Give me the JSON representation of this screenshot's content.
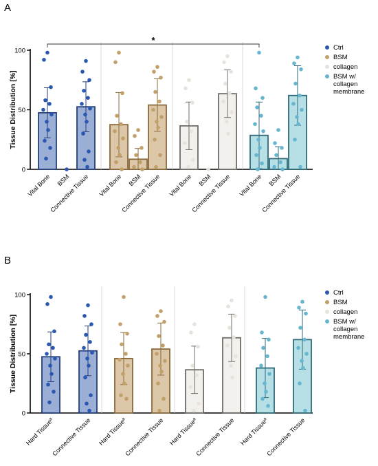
{
  "colors": {
    "Ctrl": {
      "fill": "#9aaed6",
      "stroke": "#243f7a",
      "dot": "#2a57b0"
    },
    "BSM": {
      "fill": "#dcc8a8",
      "stroke": "#8a6a3a",
      "dot": "#c2a06a"
    },
    "collagen": {
      "fill": "#f3f1ee",
      "stroke": "#6f6c67",
      "dot": "#e7e3dc"
    },
    "BSM w/ collagen membrane": {
      "fill": "#b7dfe6",
      "stroke": "#2f6a78",
      "dot": "#67b6d0"
    }
  },
  "chart_data": [
    {
      "type": "bar",
      "panel_label": "A",
      "ylabel": "Tissue Distribution [%]",
      "ylim": [
        0,
        100
      ],
      "yticks": [
        "0",
        "50",
        "100"
      ],
      "significance": "*",
      "significance_between": [
        "Ctrl · Vital Bone",
        "BSM w/ collagen membrane · Vital Bone"
      ],
      "legend": {
        "position": "right",
        "entries": [
          {
            "group": "Ctrl",
            "lines": [
              "Ctrl"
            ]
          },
          {
            "group": "BSM",
            "lines": [
              "BSM"
            ]
          },
          {
            "group": "collagen",
            "lines": [
              "collagen"
            ]
          },
          {
            "group": "BSM w/ collagen membrane",
            "lines": [
              "BSM w/",
              "collagen",
              "membrane"
            ]
          }
        ]
      },
      "groups": [
        {
          "name": "Ctrl",
          "bars": [
            {
              "label": "Vital Bone",
              "mean": 47.5,
              "sd": 21,
              "points": [
                98,
                92,
                69,
                58,
                55,
                50,
                46,
                40,
                33,
                24,
                18,
                9
              ]
            },
            {
              "label": "BSM",
              "mean": 0,
              "sd": 0,
              "points": [
                0
              ]
            },
            {
              "label": "Connective Tissue",
              "mean": 52.5,
              "sd": 21,
              "points": [
                91,
                82,
                75,
                66,
                60,
                55,
                51,
                46,
                40,
                30,
                15,
                8,
                2
              ]
            }
          ]
        },
        {
          "name": "BSM",
          "bars": [
            {
              "label": "Vital Bone",
              "mean": 37.5,
              "sd": 27,
              "points": [
                98,
                90,
                64,
                45,
                38,
                32,
                26,
                18,
                12,
                6,
                0
              ]
            },
            {
              "label": "BSM",
              "mean": 8.5,
              "sd": 9,
              "points": [
                33,
                28,
                18,
                12,
                6,
                2,
                0
              ]
            },
            {
              "label": "Connective Tissue",
              "mean": 54,
              "sd": 22,
              "points": [
                86,
                82,
                77,
                65,
                57,
                50,
                44,
                40,
                35,
                25,
                12,
                2
              ]
            }
          ]
        },
        {
          "name": "collagen",
          "bars": [
            {
              "label": "Vital Bone",
              "mean": 36.5,
              "sd": 20,
              "points": [
                75,
                68,
                56,
                40,
                32,
                22,
                8,
                2
              ]
            },
            {
              "label": "BSM",
              "mean": 0,
              "sd": 0,
              "points": [
                0
              ]
            },
            {
              "label": "Connective Tissue",
              "mean": 63.5,
              "sd": 20,
              "points": [
                95,
                90,
                82,
                72,
                64,
                57,
                48,
                40,
                30
              ]
            }
          ]
        },
        {
          "name": "BSM w/ collagen membrane",
          "bars": [
            {
              "label": "Vital Bone",
              "mean": 28.5,
              "sd": 28,
              "points": [
                98,
                68,
                60,
                52,
                45,
                38,
                32,
                25,
                18,
                12,
                5,
                0
              ]
            },
            {
              "label": "BSM",
              "mean": 9,
              "sd": 10,
              "points": [
                33,
                22,
                18,
                12,
                6,
                2,
                0
              ]
            },
            {
              "label": "Connective Tissue",
              "mean": 62,
              "sd": 25,
              "points": [
                94,
                89,
                84,
                72,
                62,
                55,
                50,
                44,
                38,
                25,
                2
              ]
            }
          ]
        }
      ]
    },
    {
      "type": "bar",
      "panel_label": "B",
      "ylabel": "Tissue Distribution [%]",
      "ylim": [
        0,
        100
      ],
      "yticks": [
        "0",
        "50",
        "100"
      ],
      "legend": {
        "position": "right",
        "entries": [
          {
            "group": "Ctrl",
            "lines": [
              "Ctrl"
            ]
          },
          {
            "group": "BSM",
            "lines": [
              "BSM"
            ]
          },
          {
            "group": "collagen",
            "lines": [
              "collagen"
            ]
          },
          {
            "group": "BSM w/ collagen membrane",
            "lines": [
              "BSM w/",
              "collagen",
              "membrane"
            ]
          }
        ]
      },
      "groups": [
        {
          "name": "Ctrl",
          "bars": [
            {
              "label": "Hard Tissueª",
              "mean": 47.5,
              "sd": 21,
              "points": [
                98,
                92,
                69,
                58,
                55,
                50,
                46,
                40,
                33,
                24,
                18,
                9
              ]
            },
            {
              "label": "Connective Tissue",
              "mean": 52.5,
              "sd": 21,
              "points": [
                91,
                82,
                75,
                66,
                60,
                55,
                51,
                46,
                40,
                30,
                15,
                8,
                2
              ]
            }
          ]
        },
        {
          "name": "BSM",
          "bars": [
            {
              "label": "Hard Tissueª",
              "mean": 46,
              "sd": 22,
              "points": [
                98,
                75,
                67,
                58,
                50,
                45,
                40,
                33,
                25,
                15,
                12
              ]
            },
            {
              "label": "Connective Tissue",
              "mean": 54,
              "sd": 22,
              "points": [
                86,
                82,
                77,
                65,
                57,
                50,
                44,
                40,
                35,
                25,
                12,
                2
              ]
            }
          ]
        },
        {
          "name": "collagen",
          "bars": [
            {
              "label": "Hard Tissueª",
              "mean": 36.5,
              "sd": 20,
              "points": [
                75,
                68,
                56,
                40,
                32,
                22,
                8,
                2
              ]
            },
            {
              "label": "Connective Tissue",
              "mean": 63.5,
              "sd": 20,
              "points": [
                95,
                90,
                82,
                72,
                64,
                57,
                48,
                40,
                30
              ]
            }
          ]
        },
        {
          "name": "BSM w/ collagen membrane",
          "bars": [
            {
              "label": "Hard Tissueª",
              "mean": 38,
              "sd": 25,
              "points": [
                98,
                68,
                62,
                55,
                48,
                40,
                33,
                25,
                18,
                12,
                6
              ]
            },
            {
              "label": "Connective Tissue",
              "mean": 62,
              "sd": 25,
              "points": [
                94,
                89,
                84,
                72,
                62,
                55,
                50,
                44,
                38,
                25,
                2
              ]
            }
          ]
        }
      ]
    }
  ]
}
